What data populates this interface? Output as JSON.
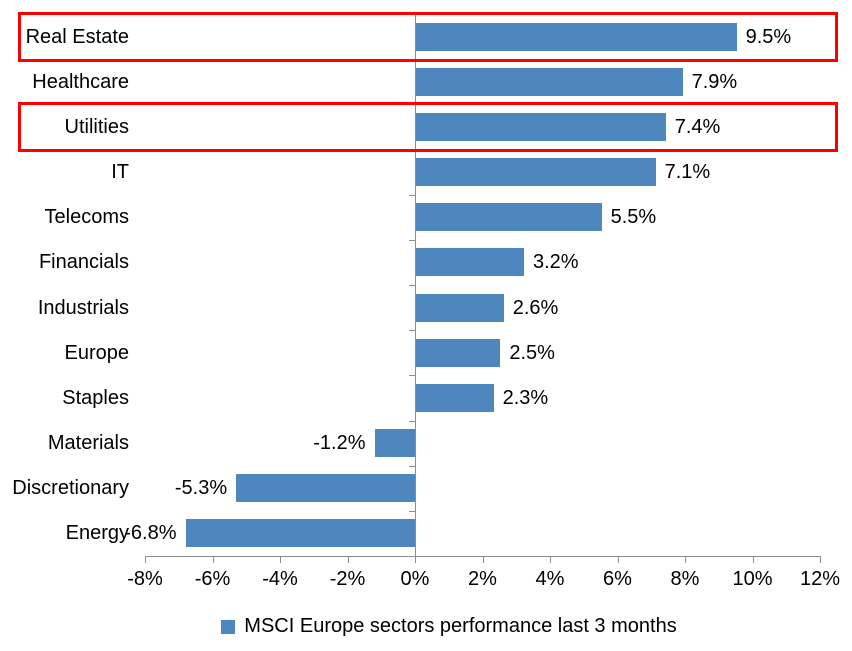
{
  "chart_data": {
    "type": "bar",
    "orientation": "horizontal",
    "title": "",
    "legend": "MSCI Europe sectors performance last 3 months",
    "legend_position": "bottom",
    "grid": false,
    "categories": [
      "Real Estate",
      "Healthcare",
      "Utilities",
      "IT",
      "Telecoms",
      "Financials",
      "Industrials",
      "Europe",
      "Staples",
      "Materials",
      "Discretionary",
      "Energy"
    ],
    "values": [
      9.5,
      7.9,
      7.4,
      7.1,
      5.5,
      3.2,
      2.6,
      2.5,
      2.3,
      -1.2,
      -5.3,
      -6.8
    ],
    "value_labels": [
      "9.5%",
      "7.9%",
      "7.4%",
      "7.1%",
      "5.5%",
      "3.2%",
      "2.6%",
      "2.5%",
      "2.3%",
      "-1.2%",
      "-5.3%",
      "-6.8%"
    ],
    "x_tick_labels": [
      "-8%",
      "-6%",
      "-4%",
      "-2%",
      "0%",
      "2%",
      "4%",
      "6%",
      "8%",
      "10%",
      "12%"
    ],
    "x_tick_values": [
      -8,
      -6,
      -4,
      -2,
      0,
      2,
      4,
      6,
      8,
      10,
      12
    ],
    "xlim": [
      -8,
      12
    ],
    "highlighted_categories": [
      "Real Estate",
      "Utilities"
    ],
    "colors": {
      "bar": "#4E87BE",
      "axis": "#8C8C8C",
      "highlight": "#FE0000",
      "text": "#000000",
      "background": "#FFFFFF"
    }
  }
}
